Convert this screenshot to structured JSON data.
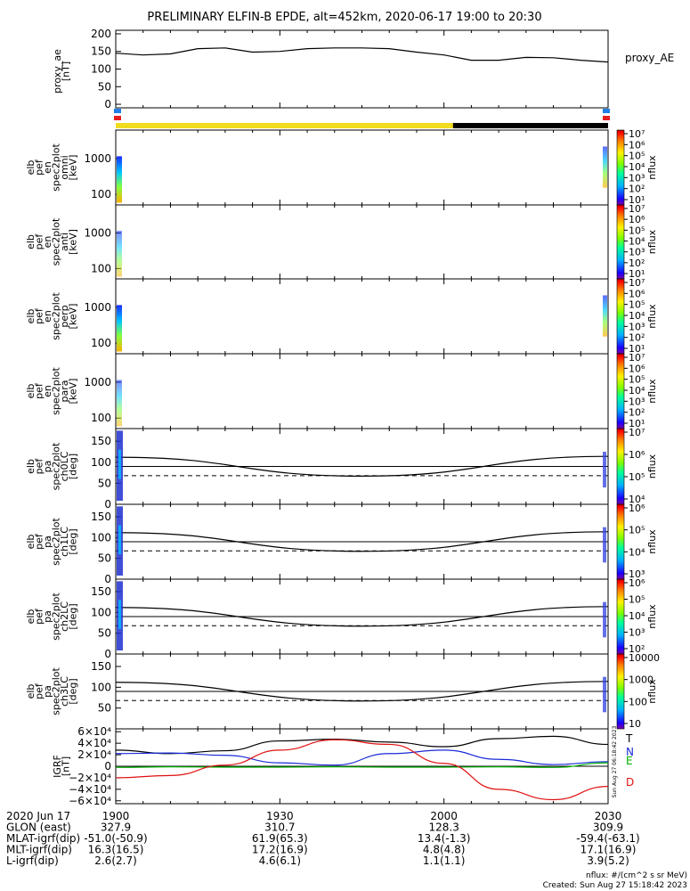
{
  "title": "PRELIMINARY ELFIN-B EPDE, alt=452km, 2020-06-17 19:00 to 20:30",
  "time_ticks": [
    "1900",
    "1930",
    "2000",
    "2030"
  ],
  "orbit_bar": {
    "colors": {
      "sun": "#f2dc1e",
      "shadow": "#000000",
      "marker_top": "#1f7fe6",
      "marker_bottom": "#e61e1e"
    },
    "sunlit_until_fraction": 0.685
  },
  "panels": {
    "proxy_ae": {
      "ylabel": [
        "proxy_ae",
        "[nT]"
      ],
      "yticks": [
        "200",
        "150",
        "100",
        "50",
        "0"
      ],
      "legend": "proxy_AE"
    },
    "en_omni": {
      "ylabel": [
        "elb",
        "pef",
        "en",
        "spec2plot",
        "omni",
        "[keV]"
      ],
      "yticks": [
        "1000",
        "100"
      ]
    },
    "en_anti": {
      "ylabel": [
        "elb",
        "pef",
        "en",
        "spec2plot",
        "anti",
        "[keV]"
      ],
      "yticks": [
        "1000",
        "100"
      ]
    },
    "en_perp": {
      "ylabel": [
        "elb",
        "pef",
        "en",
        "spec2plot",
        "perp",
        "[keV]"
      ],
      "yticks": [
        "1000",
        "100"
      ]
    },
    "en_para": {
      "ylabel": [
        "elb",
        "pef",
        "en",
        "spec2plot",
        "para",
        "[keV]"
      ],
      "yticks": [
        "1000",
        "100"
      ]
    },
    "ch0": {
      "ylabel": [
        "elb",
        "pef",
        "pa",
        "spec2plot",
        "ch0LC",
        "[deg]"
      ],
      "yticks": [
        "150",
        "100",
        "50",
        "0"
      ]
    },
    "ch1": {
      "ylabel": [
        "elb",
        "pef",
        "pa",
        "spec2plot",
        "ch1LC",
        "[deg]"
      ],
      "yticks": [
        "150",
        "100",
        "50",
        "0"
      ]
    },
    "ch2": {
      "ylabel": [
        "elb",
        "pef",
        "pa",
        "spec2plot",
        "ch2LC",
        "[deg]"
      ],
      "yticks": [
        "150",
        "100",
        "50",
        "0"
      ]
    },
    "ch3": {
      "ylabel": [
        "elb",
        "pef",
        "pa",
        "spec2plot",
        "ch3LC",
        "[deg]"
      ],
      "yticks": [
        "150",
        "100",
        "50"
      ]
    },
    "igrf": {
      "ylabel": [
        "IGRF",
        "[nT]"
      ],
      "yticks": [
        "6×10⁴",
        "4×10⁴",
        "2×10⁴",
        "0",
        "−2×10⁴",
        "−4×10⁴",
        "−6×10⁴"
      ],
      "components": [
        "T",
        "N",
        "E",
        "D"
      ]
    }
  },
  "colorbars": [
    {
      "unit": "nflux",
      "labels": [
        "10⁷",
        "10⁶",
        "10⁵",
        "10⁴",
        "10³",
        "10²",
        "10¹"
      ]
    },
    {
      "unit": "nflux",
      "labels": [
        "10⁷",
        "10⁶",
        "10⁵",
        "10⁴",
        "10³",
        "10²",
        "10¹"
      ]
    },
    {
      "unit": "nflux",
      "labels": [
        "10⁷",
        "10⁶",
        "10⁵",
        "10⁴",
        "10³",
        "10²",
        "10¹"
      ]
    },
    {
      "unit": "nflux",
      "labels": [
        "10⁷",
        "10⁶",
        "10⁵",
        "10⁴",
        "10³",
        "10²",
        "10¹"
      ]
    },
    {
      "unit": "nflux",
      "labels": [
        "10⁷",
        "10⁶",
        "10⁵",
        "10⁴"
      ]
    },
    {
      "unit": "nflux",
      "labels": [
        "10⁶",
        "10⁵",
        "10⁴",
        "10³"
      ]
    },
    {
      "unit": "nflux",
      "labels": [
        "10⁶",
        "10⁵",
        "10⁴",
        "10³",
        "10²"
      ]
    },
    {
      "unit": "nflux",
      "labels": [
        "10000",
        "1000",
        "100",
        "10"
      ]
    }
  ],
  "chart_data": {
    "type": "line",
    "time_range": [
      "2020-06-17 19:00",
      "2020-06-17 20:30"
    ],
    "proxy_ae": {
      "x_min": [
        0,
        5,
        10,
        15,
        20,
        25,
        30,
        35,
        40,
        45,
        50,
        55,
        60,
        65,
        70,
        75,
        80,
        85,
        90
      ],
      "y_nT": [
        145,
        140,
        143,
        158,
        160,
        148,
        150,
        158,
        160,
        160,
        158,
        148,
        140,
        125,
        125,
        133,
        132,
        125,
        120
      ],
      "ylim": [
        -10,
        210
      ]
    },
    "pitch_angle_reference": {
      "x_min": [
        0,
        45,
        90
      ],
      "loss_cone_deg": [
        112,
        67,
        114
      ],
      "solid_line_deg": 90,
      "dashed_line_deg": [
        68,
        68
      ]
    },
    "igrf": {
      "ylim": [
        -65000,
        65000
      ],
      "x_min": [
        0,
        10,
        20,
        30,
        40,
        50,
        60,
        70,
        80,
        90
      ],
      "T": [
        28000,
        22000,
        27000,
        44000,
        47000,
        42000,
        34000,
        48000,
        52000,
        38000
      ],
      "N": [
        22000,
        23000,
        19000,
        6000,
        2000,
        22000,
        28000,
        12000,
        3000,
        8000
      ],
      "E": [
        -2000,
        -1000,
        -1500,
        -1500,
        -1000,
        -1500,
        -1500,
        -1000,
        -2000,
        6000
      ],
      "D": [
        -20000,
        -16000,
        2000,
        28000,
        46000,
        38000,
        5000,
        -40000,
        -58000,
        -35000
      ]
    }
  },
  "footer": {
    "rows": [
      {
        "label": "2020 Jun 17",
        "values": [
          "1900",
          "1930",
          "2000",
          "2030"
        ]
      },
      {
        "label": "GLON (east)",
        "values": [
          "327.9",
          "310.7",
          "128.3",
          "309.9"
        ]
      },
      {
        "label": "MLAT-igrf(dip)",
        "values": [
          "-51.0(-50.9)",
          "61.9(65.3)",
          "13.4(-1.3)",
          "-59.4(-63.1)"
        ]
      },
      {
        "label": "MLT-igrf(dip)",
        "values": [
          "16.3(16.5)",
          "17.2(16.9)",
          "4.8(4.8)",
          "17.1(16.9)"
        ]
      },
      {
        "label": "L-igrf(dip)",
        "values": [
          "2.6(2.7)",
          "4.6(6.1)",
          "1.1(1.1)",
          "3.9(5.2)"
        ]
      }
    ],
    "units_note": "nflux: #/(cm^2 s sr MeV)",
    "created": "Created: Sun Aug 27 15:18:42 2023",
    "side_stamp": "Sun Aug 27 06:18:42 2023"
  }
}
